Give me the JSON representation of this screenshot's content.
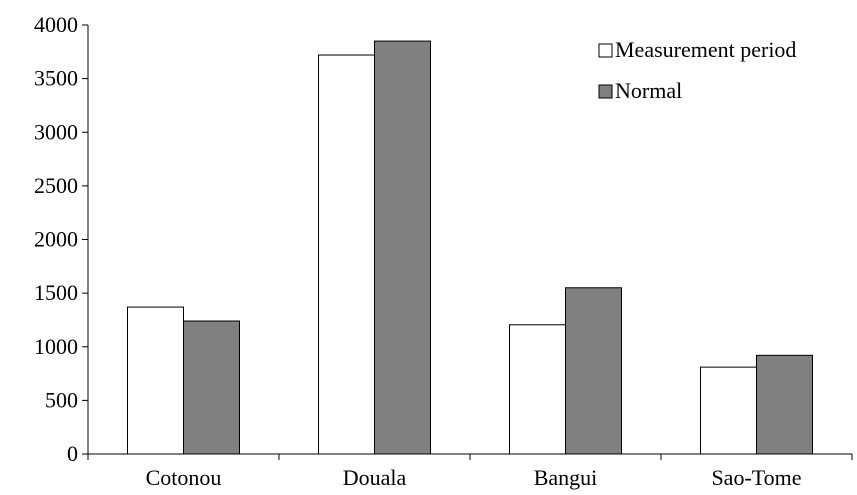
{
  "chart_data": {
    "type": "bar",
    "title": "",
    "xlabel": "",
    "ylabel": "",
    "categories": [
      "Cotonou",
      "Douala",
      "Bangui",
      "Sao-Tome"
    ],
    "series": [
      {
        "name": "Measurement period",
        "color": "#ffffff",
        "values": [
          1370,
          3720,
          1205,
          810
        ]
      },
      {
        "name": "Normal",
        "color": "#808080",
        "values": [
          1240,
          3850,
          1550,
          920
        ]
      }
    ],
    "ylim": [
      0,
      4000
    ],
    "yticks": [
      0,
      500,
      1000,
      1500,
      2000,
      2500,
      3000,
      3500,
      4000
    ],
    "grid": false,
    "legend": "top-right"
  }
}
